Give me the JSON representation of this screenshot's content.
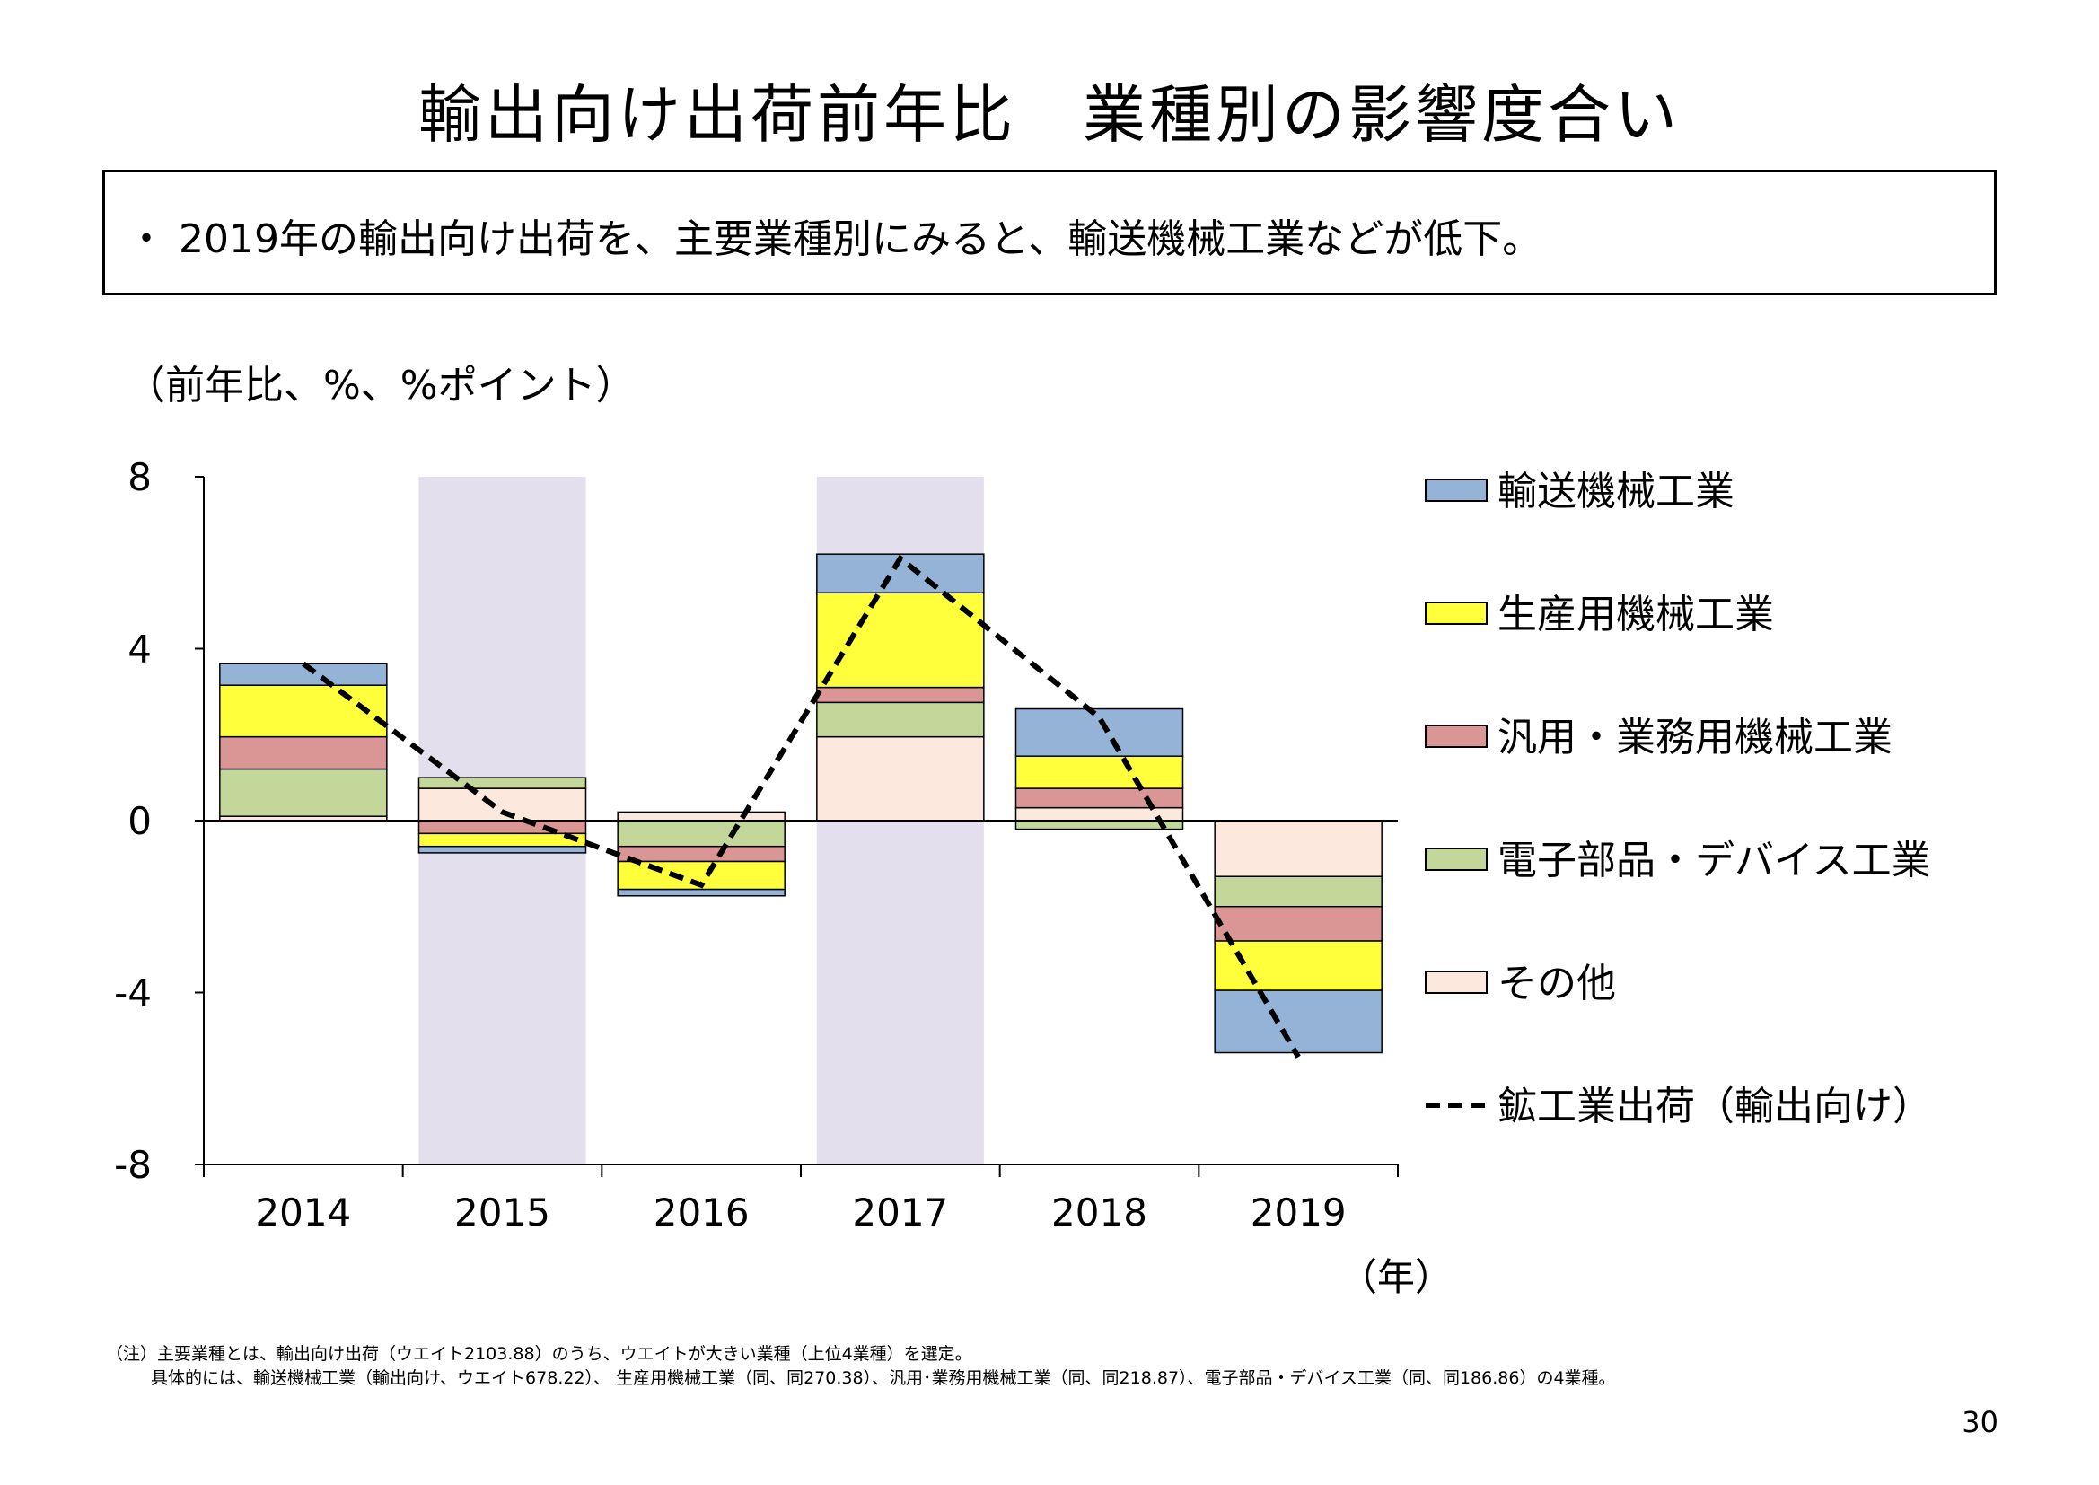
{
  "slide": {
    "title": "輸出向け出荷前年比　業種別の影響度合い",
    "summary": "・ 2019年の輸出向け出荷を、主要業種別にみると、輸送機械工業などが低下。",
    "unit_label": "（前年比、%、%ポイント）",
    "xunit_label": "（年）",
    "note_line1": "（注）主要業種とは、輸出向け出荷（ウエイト2103.88）のうち、ウエイトが大きい業種（上位4業種）を選定。",
    "note_line2": "具体的には、輸送機械工業（輸出向け、ウエイト678.22）、 生産用機械工業（同、同270.38）、汎用･業務用機械工業（同、同218.87）、電子部品・デバイス工業（同、同186.86）の4業種。",
    "page_number": "30"
  },
  "chart_data": {
    "type": "bar",
    "stacked": true,
    "categories": [
      "2014",
      "2015",
      "2016",
      "2017",
      "2018",
      "2019"
    ],
    "ylim": [
      -8,
      8
    ],
    "yticks": [
      "8",
      "4",
      "0",
      "-4",
      "-8"
    ],
    "shaded_categories": [
      "2015",
      "2017"
    ],
    "shade_color": "#e3dfec",
    "series": [
      {
        "name": "その他",
        "color": "#fce8dc",
        "values": [
          0.1,
          0.75,
          0.2,
          1.95,
          0.3,
          -1.3
        ]
      },
      {
        "name": "電子部品・デバイス工業",
        "color": "#c4d79b",
        "values": [
          1.1,
          0.25,
          -0.6,
          0.8,
          -0.2,
          -0.7
        ]
      },
      {
        "name": "汎用・業務用機械工業",
        "color": "#da9694",
        "values": [
          0.75,
          -0.3,
          -0.35,
          0.35,
          0.45,
          -0.8
        ]
      },
      {
        "name": "生産用機械工業",
        "color": "#ffff3c",
        "values": [
          1.2,
          -0.3,
          -0.65,
          2.2,
          0.75,
          -1.15
        ]
      },
      {
        "name": "輸送機械工業",
        "color": "#95b3d7",
        "values": [
          0.5,
          -0.15,
          -0.15,
          0.9,
          1.1,
          -1.45
        ]
      }
    ],
    "line": {
      "name": "鉱工業出荷（輸出向け）",
      "style": "dashed",
      "values": [
        3.65,
        0.2,
        -1.5,
        6.1,
        2.4,
        -5.5
      ]
    },
    "legend_order": [
      "輸送機械工業",
      "生産用機械工業",
      "汎用・業務用機械工業",
      "電子部品・デバイス工業",
      "その他",
      "鉱工業出荷（輸出向け）"
    ],
    "legend_position": "right"
  }
}
